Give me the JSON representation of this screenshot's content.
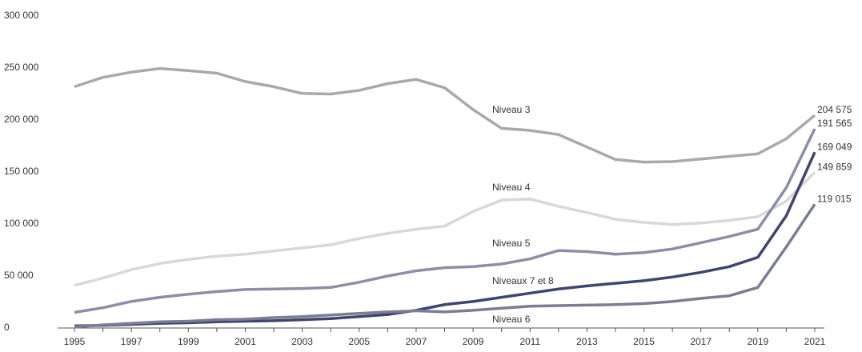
{
  "chart_data": {
    "type": "line",
    "x": [
      1995,
      1996,
      1997,
      1998,
      1999,
      2000,
      2001,
      2002,
      2003,
      2004,
      2005,
      2006,
      2007,
      2008,
      2009,
      2010,
      2011,
      2012,
      2013,
      2014,
      2015,
      2016,
      2017,
      2018,
      2019,
      2020,
      2021
    ],
    "xlim": [
      1995,
      2021
    ],
    "xticks": [
      1995,
      1997,
      1999,
      2001,
      2003,
      2005,
      2007,
      2009,
      2011,
      2013,
      2015,
      2017,
      2019,
      2021
    ],
    "ylim": [
      0,
      300000
    ],
    "yticks": [
      {
        "value": 0,
        "label": "0"
      },
      {
        "value": 50000,
        "label": "50 000"
      },
      {
        "value": 100000,
        "label": "100 000"
      },
      {
        "value": 150000,
        "label": "150 000"
      },
      {
        "value": 200000,
        "label": "200 000"
      },
      {
        "value": 250000,
        "label": "250 000"
      },
      {
        "value": 300000,
        "label": "300 000"
      }
    ],
    "grid": false,
    "series": [
      {
        "name": "Niveau 3",
        "color": "#a9a9a9",
        "values": [
          232000,
          241000,
          246000,
          249500,
          247500,
          245000,
          237000,
          232000,
          225500,
          225000,
          228500,
          235000,
          239000,
          231000,
          210000,
          192000,
          190000,
          186000,
          174000,
          162000,
          159500,
          160000,
          162500,
          165000,
          167500,
          182000,
          204575
        ],
        "value_labels": [
          null,
          null,
          null,
          null,
          null,
          null,
          null,
          null,
          null,
          null,
          null,
          null,
          null,
          null,
          null,
          null,
          null,
          null,
          null,
          null,
          null,
          null,
          null,
          null,
          null,
          null,
          "204 575"
        ]
      },
      {
        "name": "Niveau 4",
        "color": "#d7d7dd",
        "values": [
          41000,
          48000,
          56000,
          62000,
          66000,
          69000,
          71000,
          74000,
          77000,
          80000,
          86000,
          91000,
          95000,
          98000,
          112000,
          123000,
          124000,
          117000,
          111000,
          104500,
          101500,
          99500,
          101000,
          103500,
          107000,
          122000,
          149859
        ],
        "value_labels": [
          null,
          null,
          null,
          null,
          null,
          null,
          null,
          null,
          null,
          null,
          null,
          null,
          null,
          null,
          null,
          null,
          null,
          null,
          null,
          null,
          null,
          null,
          null,
          null,
          null,
          null,
          "149 859"
        ]
      },
      {
        "name": "Niveau 5",
        "color": "#8c8ea8",
        "values": [
          15000,
          19500,
          25500,
          29500,
          32500,
          35000,
          37000,
          37500,
          38000,
          39000,
          44000,
          50000,
          55000,
          58000,
          59000,
          61500,
          66500,
          74500,
          73500,
          71000,
          72500,
          76000,
          82000,
          88000,
          95000,
          135000,
          191565
        ],
        "value_labels": [
          null,
          null,
          null,
          null,
          null,
          null,
          null,
          null,
          null,
          null,
          null,
          null,
          null,
          null,
          null,
          null,
          null,
          null,
          null,
          null,
          null,
          null,
          null,
          null,
          null,
          null,
          "191 565"
        ]
      },
      {
        "name": "Niveaux 7 et 8",
        "color": "#3f4571",
        "values": [
          2000,
          2500,
          3500,
          4500,
          5000,
          6000,
          6500,
          7000,
          8000,
          9000,
          11000,
          13000,
          17000,
          22500,
          25500,
          29500,
          33500,
          37500,
          40500,
          43000,
          45500,
          49000,
          53500,
          59000,
          68000,
          108000,
          169049
        ],
        "value_labels": [
          null,
          null,
          null,
          null,
          null,
          null,
          null,
          null,
          null,
          null,
          null,
          null,
          null,
          null,
          null,
          null,
          null,
          null,
          null,
          null,
          null,
          null,
          null,
          null,
          null,
          null,
          "169 049"
        ]
      },
      {
        "name": "Niveau 6",
        "color": "#7b7d93",
        "values": [
          1000,
          3000,
          4500,
          6000,
          6500,
          8000,
          8500,
          10000,
          11000,
          12500,
          14000,
          15500,
          16500,
          15500,
          17000,
          19000,
          21000,
          21500,
          22000,
          22500,
          23500,
          25500,
          28500,
          31000,
          39000,
          78000,
          119015
        ],
        "value_labels": [
          null,
          null,
          null,
          null,
          null,
          null,
          null,
          null,
          null,
          null,
          null,
          null,
          null,
          null,
          null,
          null,
          null,
          null,
          null,
          null,
          null,
          null,
          null,
          null,
          null,
          null,
          "119 015"
        ]
      }
    ]
  }
}
